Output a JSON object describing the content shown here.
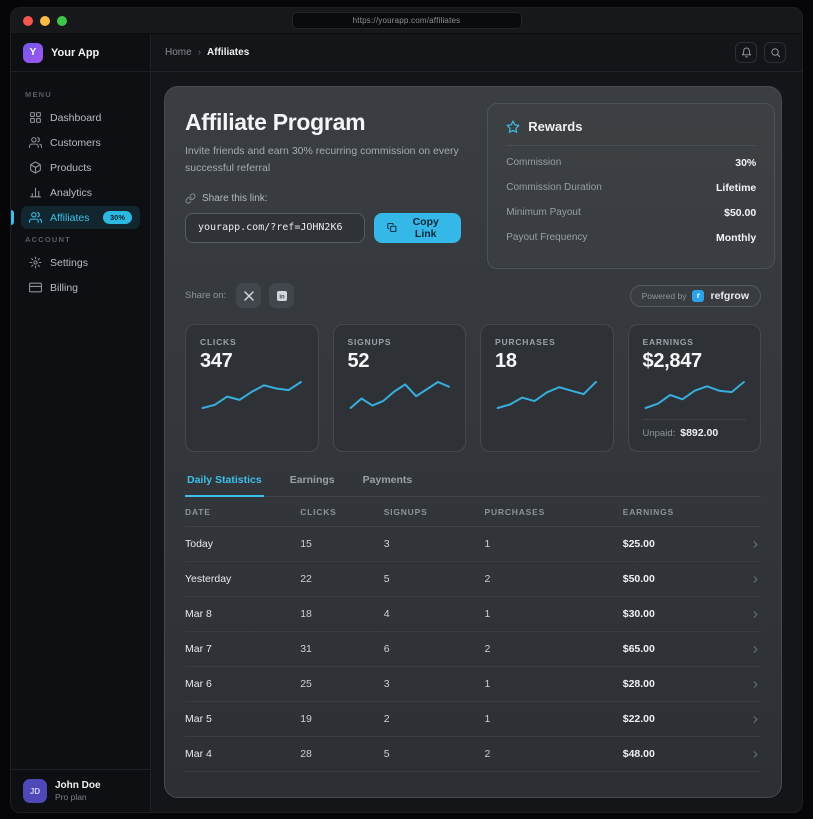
{
  "browser": {
    "url": "https://yourapp.com/affiliates"
  },
  "sidebar": {
    "brand": {
      "initial": "Y",
      "name": "Your App"
    },
    "sections": [
      {
        "label": "MENU",
        "items": [
          {
            "label": "Dashboard",
            "icon": "dashboard-icon",
            "active": false
          },
          {
            "label": "Customers",
            "icon": "customers-icon",
            "active": false
          },
          {
            "label": "Products",
            "icon": "products-icon",
            "active": false
          },
          {
            "label": "Analytics",
            "icon": "analytics-icon",
            "active": false
          },
          {
            "label": "Affiliates",
            "icon": "affiliates-icon",
            "active": true,
            "badge": "30%"
          }
        ]
      },
      {
        "label": "ACCOUNT",
        "items": [
          {
            "label": "Settings",
            "icon": "settings-icon",
            "active": false
          },
          {
            "label": "Billing",
            "icon": "billing-icon",
            "active": false
          }
        ]
      }
    ],
    "user": {
      "initials": "JD",
      "name": "John Doe",
      "plan": "Pro plan"
    }
  },
  "header": {
    "breadcrumb": {
      "home": "Home",
      "separator": "›",
      "current": "Affiliates"
    }
  },
  "hero": {
    "title": "Affiliate Program",
    "subtitle": "Invite friends and earn 30% recurring commission on every successful referral",
    "share_label": "Share this link:",
    "link_value": "yourapp.com/?ref=JOHN2K6",
    "copy_button": "Copy Link"
  },
  "rewards": {
    "title": "Rewards",
    "rows": [
      {
        "label": "Commission",
        "value": "30%"
      },
      {
        "label": "Commission Duration",
        "value": "Lifetime"
      },
      {
        "label": "Minimum Payout",
        "value": "$50.00"
      },
      {
        "label": "Payout Frequency",
        "value": "Monthly"
      }
    ]
  },
  "share_on": {
    "label": "Share on:",
    "networks": [
      {
        "name": "x",
        "icon": "x-icon"
      },
      {
        "name": "linkedin",
        "icon": "linkedin-icon"
      }
    ],
    "powered_by": "Powered by",
    "brand_initial": "r",
    "brand": "refgrow"
  },
  "stats": [
    {
      "label": "CLICKS",
      "value": "347",
      "spark": [
        10,
        11,
        13.5,
        12.5,
        15,
        17,
        16,
        15.5,
        18
      ]
    },
    {
      "label": "SIGNUPS",
      "value": "52",
      "spark": [
        12,
        16,
        13,
        15,
        19,
        22,
        17,
        20,
        23,
        21
      ]
    },
    {
      "label": "PURCHASES",
      "value": "18",
      "spark": [
        10,
        11,
        13,
        12,
        14.5,
        16,
        15,
        14,
        17.5
      ]
    },
    {
      "label": "EARNINGS",
      "value": "$2,847",
      "spark": [
        10,
        11.5,
        14.5,
        13,
        16,
        17.5,
        16,
        15.5,
        19
      ],
      "unpaid_label": "Unpaid:",
      "unpaid_value": "$892.00"
    }
  ],
  "tabs": {
    "active_index": 0,
    "items": [
      "Daily Statistics",
      "Earnings",
      "Payments"
    ]
  },
  "table": {
    "columns": [
      "DATE",
      "CLICKS",
      "SIGNUPS",
      "PURCHASES",
      "EARNINGS"
    ],
    "rows": [
      {
        "date": "Today",
        "clicks": "15",
        "signups": "3",
        "purchases": "1",
        "earnings": "$25.00"
      },
      {
        "date": "Yesterday",
        "clicks": "22",
        "signups": "5",
        "purchases": "2",
        "earnings": "$50.00"
      },
      {
        "date": "Mar 8",
        "clicks": "18",
        "signups": "4",
        "purchases": "1",
        "earnings": "$30.00"
      },
      {
        "date": "Mar 7",
        "clicks": "31",
        "signups": "6",
        "purchases": "2",
        "earnings": "$65.00"
      },
      {
        "date": "Mar 6",
        "clicks": "25",
        "signups": "3",
        "purchases": "1",
        "earnings": "$28.00"
      },
      {
        "date": "Mar 5",
        "clicks": "19",
        "signups": "2",
        "purchases": "1",
        "earnings": "$22.00"
      },
      {
        "date": "Mar 4",
        "clicks": "28",
        "signups": "5",
        "purchases": "2",
        "earnings": "$48.00"
      }
    ]
  },
  "colors": {
    "accent": "#3cc0ea",
    "sparkline": "#37aedd",
    "badge_bg": "#2db8e2",
    "copy_button_bg": "#35b7e8",
    "traffic_red": "#f4574d",
    "traffic_yellow": "#f7bd45",
    "traffic_green": "#3ec64b"
  }
}
